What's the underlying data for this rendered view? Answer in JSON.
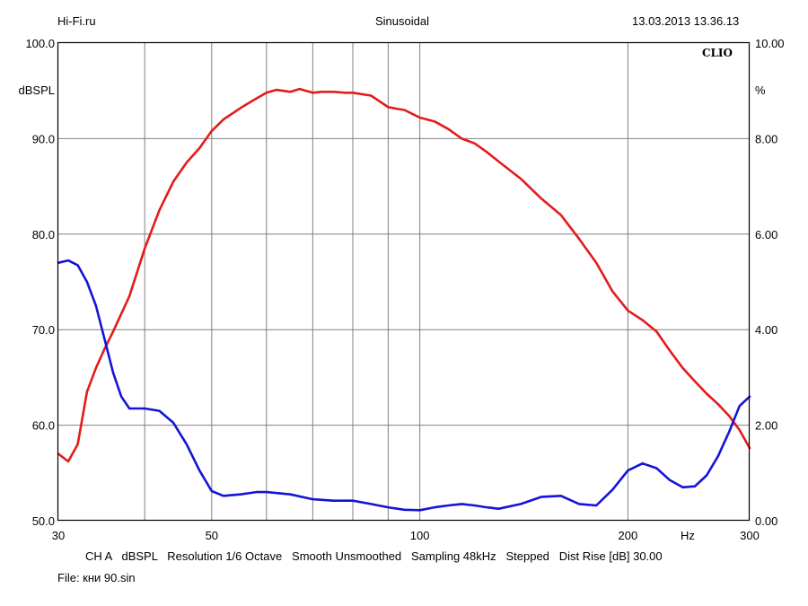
{
  "header": {
    "source": "Hi-Fi.ru",
    "mode": "Sinusoidal",
    "timestamp": "13.03.2013 13.36.13"
  },
  "brand": "CLIO",
  "footer": {
    "settings_line": "CH A   dBSPL   Resolution 1/6 Octave   Smooth Unsmoothed   Sampling 48kHz   Stepped   Dist Rise [dB] 30.00",
    "file_line": "File: кни 90.sin"
  },
  "colors": {
    "spl_curve": "#e31b1b",
    "distortion_curve": "#1414d6",
    "grid": "#808080",
    "frame": "#000000"
  },
  "chart_data": {
    "type": "line",
    "title": "",
    "x_scale": "log",
    "xlim": [
      30,
      300
    ],
    "x_ticks": [
      30,
      50,
      100,
      200,
      300
    ],
    "x_tick_labels": [
      "30",
      "50",
      "100",
      "200",
      "300"
    ],
    "x_grid_lines": [
      40,
      50,
      60,
      70,
      80,
      90,
      100,
      200
    ],
    "xlabel": "Hz",
    "y_left": {
      "label": "dBSPL",
      "lim": [
        50,
        100
      ],
      "ticks": [
        50,
        60,
        70,
        80,
        90,
        100
      ],
      "tick_labels": [
        "50.0",
        "60.0",
        "70.0",
        "80.0",
        "90.0",
        "100.0"
      ]
    },
    "y_right": {
      "label": "%",
      "lim": [
        0,
        10
      ],
      "ticks": [
        0,
        2,
        4,
        6,
        8,
        10
      ],
      "tick_labels": [
        "0.00",
        "2.00",
        "4.00",
        "6.00",
        "8.00",
        "10.00"
      ]
    },
    "grid": true,
    "series": [
      {
        "axis": "left",
        "x": [
          30,
          31,
          32,
          33,
          34,
          35,
          36,
          38,
          40,
          42,
          44,
          46,
          48,
          50,
          52,
          55,
          58,
          60,
          62,
          65,
          67,
          70,
          72,
          75,
          78,
          80,
          85,
          90,
          93,
          95,
          100,
          105,
          110,
          115,
          120,
          125,
          130,
          140,
          150,
          160,
          170,
          180,
          190,
          200,
          210,
          220,
          230,
          240,
          250,
          260,
          270,
          280,
          290,
          300
        ],
        "values": [
          57,
          56.2,
          58,
          63.5,
          66,
          68,
          69.8,
          73.5,
          78.5,
          82.5,
          85.5,
          87.5,
          89,
          90.8,
          92,
          93.2,
          94.2,
          94.8,
          95.1,
          94.9,
          95.2,
          94.8,
          94.9,
          94.9,
          94.8,
          94.8,
          94.5,
          93.3,
          93.1,
          93,
          92.2,
          91.8,
          91,
          90,
          89.5,
          88.6,
          87.6,
          85.8,
          83.7,
          82,
          79.5,
          77,
          74,
          72,
          71,
          69.8,
          67.8,
          66,
          64.6,
          63.3,
          62.2,
          61,
          59.5,
          57.6
        ]
      },
      {
        "axis": "right",
        "x": [
          30,
          31,
          32,
          33,
          34,
          35,
          36,
          37,
          38,
          40,
          42,
          44,
          46,
          48,
          50,
          52,
          55,
          58,
          60,
          65,
          70,
          75,
          80,
          85,
          90,
          95,
          100,
          105,
          110,
          115,
          120,
          125,
          130,
          140,
          150,
          160,
          170,
          180,
          190,
          200,
          210,
          220,
          230,
          240,
          250,
          260,
          270,
          280,
          290,
          300
        ],
        "values": [
          5.4,
          5.45,
          5.35,
          5,
          4.5,
          3.8,
          3.1,
          2.6,
          2.35,
          2.35,
          2.3,
          2.05,
          1.6,
          1.05,
          0.62,
          0.52,
          0.55,
          0.6,
          0.6,
          0.55,
          0.45,
          0.42,
          0.42,
          0.35,
          0.28,
          0.23,
          0.22,
          0.28,
          0.32,
          0.35,
          0.32,
          0.28,
          0.25,
          0.35,
          0.5,
          0.52,
          0.35,
          0.32,
          0.65,
          1.05,
          1.2,
          1.1,
          0.85,
          0.7,
          0.72,
          0.95,
          1.35,
          1.85,
          2.4,
          2.6
        ]
      }
    ]
  }
}
